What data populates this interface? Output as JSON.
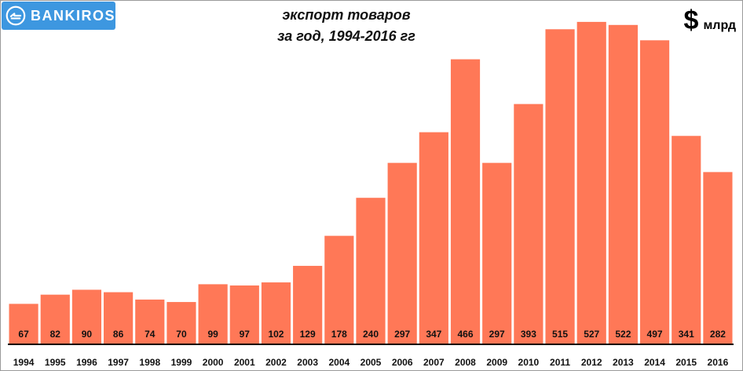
{
  "brand": {
    "name": "BANKIROS",
    "logo_color": "#3d97e0"
  },
  "unit": {
    "symbol": "$",
    "text": "млрд"
  },
  "chart_data": {
    "type": "bar",
    "title": "экспорт товаров",
    "subtitle": "за год, 1994-2016 гг",
    "xlabel": "",
    "ylabel": "",
    "categories": [
      "1994",
      "1995",
      "1996",
      "1997",
      "1998",
      "1999",
      "2000",
      "2001",
      "2002",
      "2003",
      "2004",
      "2005",
      "2006",
      "2007",
      "2008",
      "2009",
      "2010",
      "2011",
      "2012",
      "2013",
      "2014",
      "2015",
      "2016"
    ],
    "values": [
      67,
      82,
      90,
      86,
      74,
      70,
      99,
      97,
      102,
      129,
      178,
      240,
      297,
      347,
      466,
      297,
      393,
      515,
      527,
      522,
      497,
      341,
      282
    ],
    "ylim": [
      0,
      540
    ],
    "grid": false,
    "bar_color": "#ff7857",
    "data_labels": true
  }
}
